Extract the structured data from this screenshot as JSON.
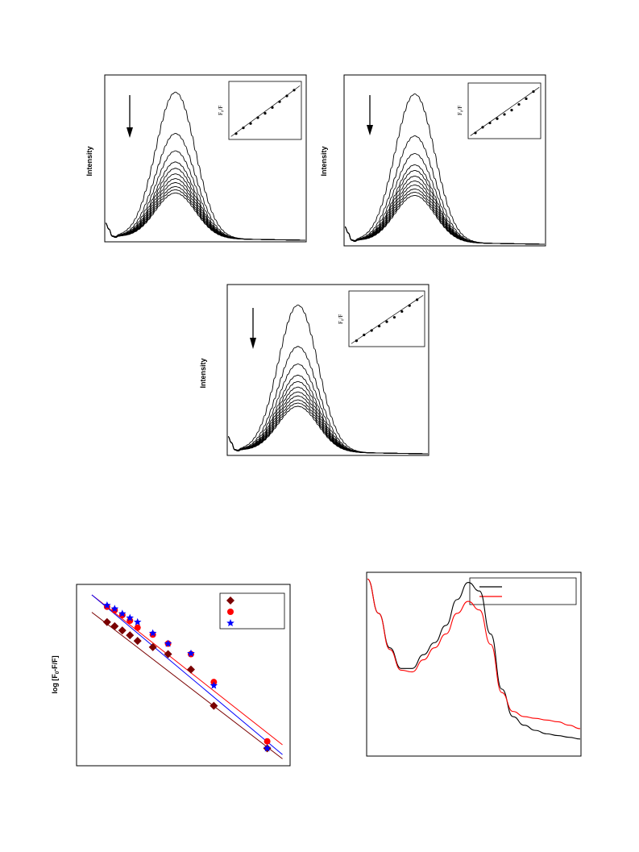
{
  "chart_data": [
    {
      "type": "line",
      "ylabel": "Intensity",
      "peak_profile": [
        0.08,
        0.04,
        0.085,
        0.22,
        0.46,
        0.76,
        0.96,
        1.0,
        0.9,
        0.7,
        0.48,
        0.3,
        0.17,
        0.09,
        0.05,
        0.03,
        0.02,
        0.01,
        0.005,
        0.0
      ],
      "series": [
        {
          "values": [
            0.44,
            0.26,
            0.3,
            0.42,
            0.6,
            0.83,
            0.98,
            1.0,
            0.94,
            0.8,
            0.62,
            0.45,
            0.3,
            0.19,
            0.11,
            0.07,
            0.04,
            0.025,
            0.015,
            0.01
          ]
        },
        {
          "values": [
            0.44,
            0.26,
            0.3,
            0.42,
            0.59,
            0.79,
            0.92,
            0.945,
            0.88,
            0.74,
            0.57,
            0.4,
            0.27,
            0.17,
            0.1,
            0.06,
            0.035,
            0.02,
            0.012,
            0.008
          ]
        },
        {
          "values": [
            0.45,
            0.27,
            0.31,
            0.43,
            0.6,
            0.79,
            0.91,
            0.93,
            0.86,
            0.72,
            0.55,
            0.39,
            0.26,
            0.16,
            0.1,
            0.06,
            0.035,
            0.02,
            0.012,
            0.008
          ]
        }
      ],
      "inset": {
        "ylabel": "F0/F",
        "points": [
          [
            1,
            1.0
          ],
          [
            2,
            1.2
          ],
          [
            3,
            1.35
          ],
          [
            4,
            1.55
          ],
          [
            5,
            1.7
          ],
          [
            6,
            1.9
          ],
          [
            7,
            2.1
          ],
          [
            8,
            2.3
          ],
          [
            9,
            2.5
          ]
        ]
      },
      "arrow": "down"
    },
    {
      "type": "line",
      "ylabel": "Intensity",
      "peak_heights": [
        0.92,
        0.66,
        0.55,
        0.48,
        0.445,
        0.41,
        0.38,
        0.355,
        0.33,
        0.31,
        0.29
      ],
      "inset": {
        "ylabel": "F0/F",
        "points": [
          [
            1,
            1.0
          ],
          [
            2,
            1.2
          ],
          [
            3,
            1.35
          ],
          [
            4,
            1.5
          ],
          [
            5,
            1.65
          ],
          [
            6,
            1.8
          ],
          [
            7,
            2.0
          ],
          [
            8,
            2.2
          ],
          [
            9,
            2.45
          ]
        ]
      },
      "arrow": "down"
    },
    {
      "type": "line",
      "ylabel": "Intensity",
      "peak_heights": [
        0.92,
        0.66,
        0.55,
        0.48,
        0.44,
        0.405,
        0.375,
        0.35,
        0.325,
        0.305,
        0.285
      ],
      "inset": {
        "ylabel": "F0/F",
        "points": [
          [
            1,
            1.0
          ],
          [
            2,
            1.2
          ],
          [
            3,
            1.35
          ],
          [
            4,
            1.5
          ],
          [
            5,
            1.65
          ],
          [
            6,
            1.8
          ],
          [
            7,
            2.0
          ],
          [
            8,
            2.2
          ],
          [
            9,
            2.4
          ]
        ]
      },
      "arrow": "down"
    },
    {
      "type": "scatter",
      "ylabel": "log [F",
      "ylabel_sub": "0",
      "ylabel_tail": "-F/F]",
      "series": [
        {
          "color": "#7a0000",
          "marker": "diamond",
          "points": [
            [
              1,
              0.76
            ],
            [
              1.5,
              0.7
            ],
            [
              2,
              0.64
            ],
            [
              2.5,
              0.57
            ],
            [
              3,
              0.49
            ],
            [
              4,
              0.4
            ],
            [
              5,
              0.3
            ],
            [
              6.5,
              0.08
            ],
            [
              8,
              -0.44
            ],
            [
              11.5,
              -1.05
            ]
          ]
        },
        {
          "color": "#ff0000",
          "marker": "circle",
          "points": [
            [
              1,
              0.98
            ],
            [
              1.5,
              0.93
            ],
            [
              2,
              0.86
            ],
            [
              2.5,
              0.78
            ],
            [
              3,
              0.68
            ],
            [
              4,
              0.58
            ],
            [
              5,
              0.45
            ],
            [
              6.5,
              0.3
            ],
            [
              8,
              -0.1
            ],
            [
              11.5,
              -0.95
            ]
          ]
        },
        {
          "color": "#0000ff",
          "marker": "star",
          "points": [
            [
              1,
              1.0
            ],
            [
              1.5,
              0.95
            ],
            [
              2,
              0.88
            ],
            [
              2.5,
              0.82
            ],
            [
              3,
              0.76
            ],
            [
              4,
              0.6
            ],
            [
              5,
              0.45
            ],
            [
              6.5,
              0.31
            ],
            [
              8,
              -0.15
            ],
            [
              11.5,
              -1.05
            ]
          ]
        }
      ],
      "fit_lines": [
        {
          "color": "#7a0000",
          "from": [
            0,
            0.9
          ],
          "to": [
            12.5,
            -1.2
          ]
        },
        {
          "color": "#ff0000",
          "from": [
            0,
            1.15
          ],
          "to": [
            12.5,
            -1.0
          ]
        },
        {
          "color": "#0000ff",
          "from": [
            0,
            1.15
          ],
          "to": [
            12.5,
            -1.14
          ]
        }
      ]
    },
    {
      "type": "line",
      "series": [
        {
          "color": "#000000",
          "values": [
            1.02,
            0.82,
            0.62,
            0.5,
            0.5,
            0.58,
            0.65,
            0.75,
            0.9,
            1.0,
            0.95,
            0.7,
            0.38,
            0.22,
            0.17,
            0.14,
            0.12,
            0.11,
            0.1,
            0.09
          ]
        },
        {
          "color": "#ff0000",
          "values": [
            1.02,
            0.82,
            0.61,
            0.49,
            0.48,
            0.55,
            0.62,
            0.7,
            0.82,
            0.89,
            0.84,
            0.64,
            0.36,
            0.25,
            0.22,
            0.21,
            0.2,
            0.19,
            0.17,
            0.15
          ]
        }
      ]
    }
  ]
}
